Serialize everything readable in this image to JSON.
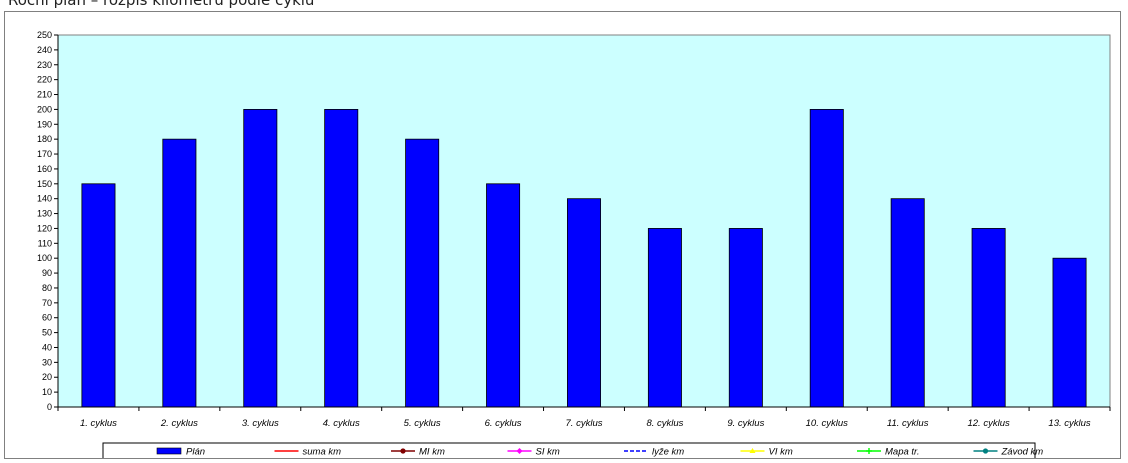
{
  "header": {
    "partial_text": "Roční plán – rozpis kilometrů podle cyklů"
  },
  "colors": {
    "plot_bg": "#ccffff",
    "bar": "#0000ff",
    "suma_km": "#ff0000",
    "mi_km": "#800000",
    "si_km": "#ff00ff",
    "lyze_km": "#0000ff",
    "vi_km": "#ffff00",
    "mapa_tr": "#00ff00",
    "zavod_km": "#008080"
  },
  "chart_data": {
    "type": "bar",
    "categories": [
      "1. cyklus",
      "2. cyklus",
      "3. cyklus",
      "4. cyklus",
      "5. cyklus",
      "6. cyklus",
      "7. cyklus",
      "8. cyklus",
      "9. cyklus",
      "10. cyklus",
      "11. cyklus",
      "12. cyklus",
      "13. cyklus"
    ],
    "series": [
      {
        "name": "Plán",
        "values": [
          150,
          180,
          200,
          200,
          180,
          150,
          140,
          120,
          120,
          200,
          140,
          120,
          100
        ]
      }
    ],
    "legend_entries": [
      "Plán",
      "suma km",
      "MI km",
      "SI km",
      "lyže km",
      "VI km",
      "Mapa tr.",
      "Závod km"
    ],
    "ylim": [
      0,
      250
    ],
    "y_step": 10,
    "grid": false,
    "legend_position": "bottom"
  }
}
